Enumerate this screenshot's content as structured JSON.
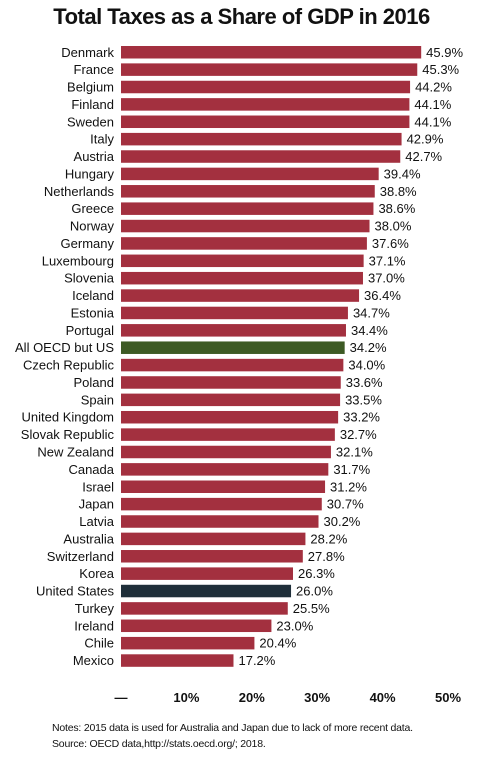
{
  "chart_data": {
    "type": "bar",
    "orientation": "horizontal",
    "title": "Total Taxes as a Share of GDP in 2016",
    "categories": [
      "Denmark",
      "France",
      "Belgium",
      "Finland",
      "Sweden",
      "Italy",
      "Austria",
      "Hungary",
      "Netherlands",
      "Greece",
      "Norway",
      "Germany",
      "Luxembourg",
      "Slovenia",
      "Iceland",
      "Estonia",
      "Portugal",
      "All OECD but US",
      "Czech Republic",
      "Poland",
      "Spain",
      "United Kingdom",
      "Slovak Republic",
      "New Zealand",
      "Canada",
      "Israel",
      "Japan",
      "Latvia",
      "Australia",
      "Switzerland",
      "Korea",
      "United States",
      "Turkey",
      "Ireland",
      "Chile",
      "Mexico"
    ],
    "values": [
      45.9,
      45.3,
      44.2,
      44.1,
      44.1,
      42.9,
      42.7,
      39.4,
      38.8,
      38.6,
      38.0,
      37.6,
      37.1,
      37.0,
      36.4,
      34.7,
      34.4,
      34.2,
      34.0,
      33.6,
      33.5,
      33.2,
      32.7,
      32.1,
      31.7,
      31.2,
      30.7,
      30.2,
      28.2,
      27.8,
      26.3,
      26.0,
      25.5,
      23.0,
      20.4,
      17.2
    ],
    "value_labels": [
      "45.9%",
      "45.3%",
      "44.2%",
      "44.1%",
      "44.1%",
      "42.9%",
      "42.7%",
      "39.4%",
      "38.8%",
      "38.6%",
      "38.0%",
      "37.6%",
      "37.1%",
      "37.0%",
      "36.4%",
      "34.7%",
      "34.4%",
      "34.2%",
      "34.0%",
      "33.6%",
      "33.5%",
      "33.2%",
      "32.7%",
      "32.1%",
      "31.7%",
      "31.2%",
      "30.7%",
      "30.2%",
      "28.2%",
      "27.8%",
      "26.3%",
      "26.0%",
      "25.5%",
      "23.0%",
      "20.4%",
      "17.2%"
    ],
    "highlights": {
      "All OECD but US": "#3d5a24",
      "United States": "#1f2f3a"
    },
    "bar_color": "#a3303f",
    "xlim": [
      0,
      50
    ],
    "xticks": [
      0,
      10,
      20,
      30,
      40,
      50
    ],
    "xtick_labels": [
      "—",
      "10%",
      "20%",
      "30%",
      "40%",
      "50%"
    ],
    "grid": false
  },
  "notes": {
    "line1": "Notes: 2015 data is used for Australia and Japan due to lack of more recent data.",
    "line2": "Source: OECD data,http://stats.oecd.org/; 2018."
  }
}
